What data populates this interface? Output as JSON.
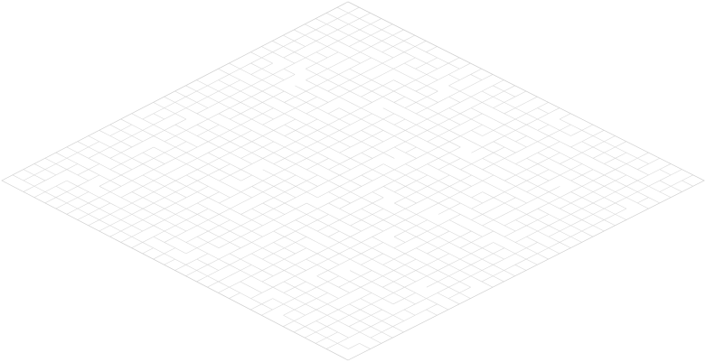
{
  "scene": {
    "type": "isometric-grid",
    "background_color": "#ffffff",
    "line_color": "#d9d9d9",
    "outline_color": "#cfcfcf",
    "rows": 32,
    "cols": 32,
    "broken_segments": true
  }
}
